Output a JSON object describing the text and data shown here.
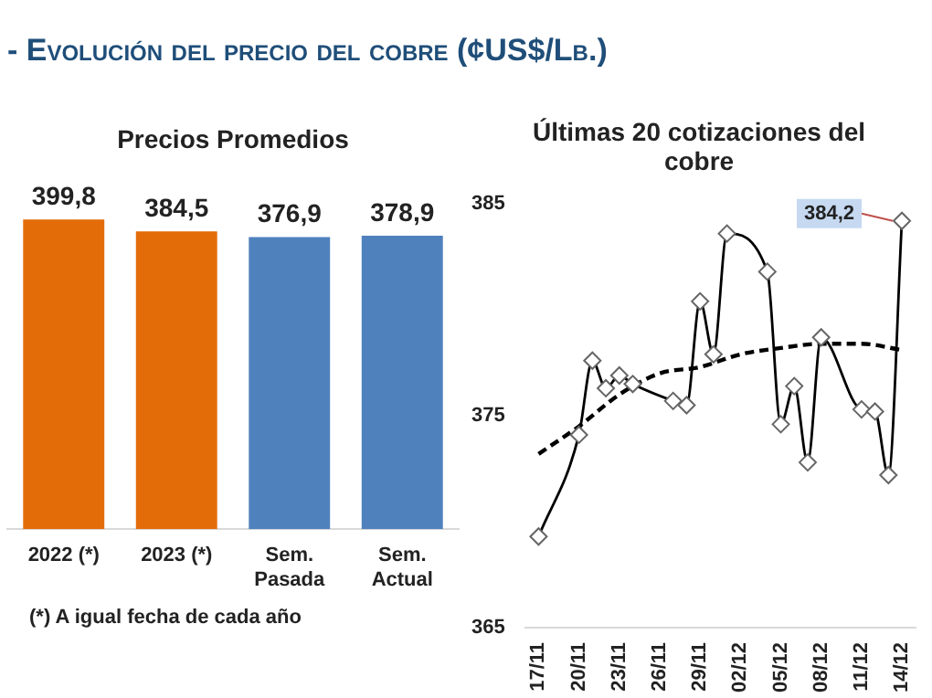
{
  "chart_data": [
    {
      "type": "bar",
      "title": "- Evolución del precio del cobre (¢US$/Lb.)",
      "subtitle": "Precios Promedios",
      "categories": [
        "2022 (*)",
        "2023 (*)",
        "Sem. Pasada",
        "Sem. Actual"
      ],
      "values": [
        399.8,
        384.5,
        376.9,
        378.9
      ],
      "colors": [
        "#e36c09",
        "#e36c09",
        "#4f81bd",
        "#4f81bd"
      ],
      "value_labels": [
        "399,8",
        "384,5",
        "376,9",
        "378,9"
      ],
      "tick_labels": "x",
      "annotations": [
        "(*) A igual fecha de cada año"
      ]
    },
    {
      "type": "line",
      "title": "Últimas 20 cotizaciones del cobre",
      "series": [
        {
          "color": "#000000",
          "marker": "diamond",
          "line_style": "solid",
          "x": [
            "--11-17",
            "--11-20",
            "--11-21",
            "--11-22",
            "--11-23",
            "--11-24",
            "--11-27",
            "--11-28",
            "--11-29",
            "--11-30",
            "--12-01",
            "--12-04",
            "--12-05",
            "--12-06",
            "--12-07",
            "--12-08",
            "--12-11",
            "--12-12",
            "--12-13",
            "--12-14"
          ],
          "values": [
            369.3,
            374.1,
            377.6,
            376.3,
            376.9,
            376.5,
            375.7,
            375.5,
            380.4,
            377.9,
            383.6,
            381.8,
            374.6,
            376.4,
            372.8,
            378.7,
            375.3,
            375.2,
            372.2,
            384.2
          ]
        },
        {
          "type": "line",
          "color": "#000000",
          "marker": "none",
          "line_style": "dashed",
          "x": [
            "--11-17",
            "--11-20",
            "--11-23",
            "--11-26",
            "--11-29",
            "--12-02",
            "--12-05",
            "--12-08",
            "--12-11",
            "--12-14"
          ],
          "values": [
            373.2,
            374.5,
            376.0,
            377.0,
            377.3,
            377.9,
            378.2,
            378.4,
            378.4,
            378.1
          ]
        }
      ],
      "xlim": [
        "--11-16",
        "--12-15"
      ],
      "xticks": [
        {
          "value": "--11-17",
          "label": "17/11"
        },
        {
          "value": "--11-20",
          "label": "20/11"
        },
        {
          "value": "--11-23",
          "label": "23/11"
        },
        {
          "value": "--11-26",
          "label": "26/11"
        },
        {
          "value": "--11-29",
          "label": "29/11"
        },
        {
          "value": "--12-02",
          "label": "02/12"
        },
        {
          "value": "--12-05",
          "label": "05/12"
        },
        {
          "value": "--12-08",
          "label": "08/12"
        },
        {
          "value": "--12-11",
          "label": "11/12"
        },
        {
          "value": "--12-14",
          "label": "14/12"
        }
      ],
      "ylim": [
        365,
        385
      ],
      "yticks": [
        365,
        375,
        385
      ],
      "grid": false,
      "annotations": [
        {
          "text": "384,2",
          "x": "--12-14",
          "y": 384.2
        }
      ]
    }
  ]
}
